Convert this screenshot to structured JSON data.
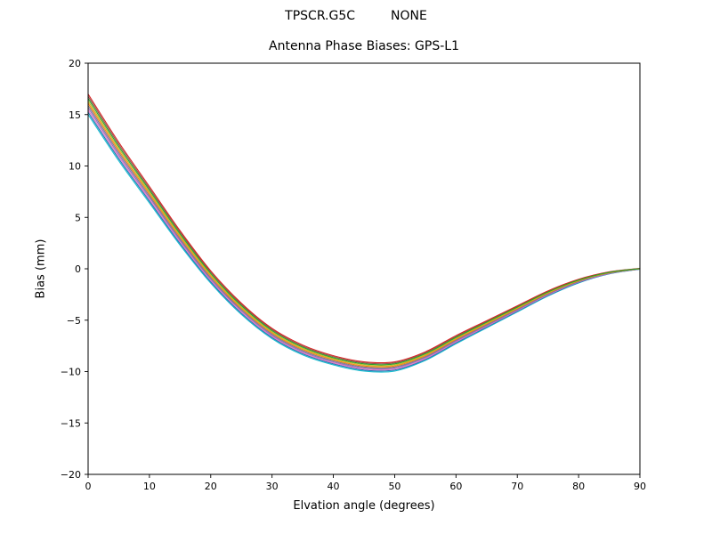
{
  "chart_data": {
    "type": "line",
    "suptitle_left": "TPSCR.G5C",
    "suptitle_right": "NONE",
    "title": "Antenna Phase Biases: GPS-L1",
    "xlabel": "Elvation angle (degrees)",
    "ylabel": "Bias (mm)",
    "xlim": [
      0,
      90
    ],
    "ylim": [
      -20,
      20
    ],
    "grid": false,
    "legend": false,
    "frame_color": "#000000",
    "background": "#ffffff",
    "line_width": 1.1,
    "xticks": {
      "values": [
        0,
        10,
        20,
        30,
        40,
        50,
        60,
        70,
        80,
        90
      ],
      "labels": [
        "0",
        "10",
        "20",
        "30",
        "40",
        "50",
        "60",
        "70",
        "80",
        "90"
      ]
    },
    "yticks": {
      "values": [
        -20,
        -15,
        -10,
        -5,
        0,
        5,
        10,
        15,
        20
      ],
      "labels": [
        "−20",
        "−15",
        "−10",
        "−5",
        "0",
        "5",
        "10",
        "15",
        "20"
      ]
    },
    "x": [
      0,
      5,
      10,
      15,
      20,
      25,
      30,
      35,
      40,
      45,
      50,
      55,
      60,
      65,
      70,
      75,
      80,
      85,
      90
    ],
    "series": [
      {
        "name": "line-01",
        "color": "#17becf",
        "values": [
          15.0,
          10.5,
          6.4,
          2.3,
          -1.4,
          -4.45,
          -6.8,
          -8.38,
          -9.35,
          -9.95,
          -9.95,
          -8.92,
          -7.3,
          -5.75,
          -4.2,
          -2.65,
          -1.38,
          -0.5,
          -0.04
        ]
      },
      {
        "name": "line-02",
        "color": "#1f77b4",
        "values": [
          15.22,
          10.7,
          6.58,
          2.45,
          -1.27,
          -4.33,
          -6.69,
          -8.27,
          -9.25,
          -9.85,
          -9.85,
          -8.83,
          -7.21,
          -5.67,
          -4.13,
          -2.6,
          -1.34,
          -0.48,
          -0.03
        ]
      },
      {
        "name": "line-03",
        "color": "#e377c2",
        "values": [
          15.44,
          10.9,
          6.75,
          2.61,
          -1.14,
          -4.21,
          -6.58,
          -8.17,
          -9.15,
          -9.75,
          -9.75,
          -8.74,
          -7.12,
          -5.6,
          -4.07,
          -2.54,
          -1.3,
          -0.46,
          -0.02
        ]
      },
      {
        "name": "line-04",
        "color": "#9467bd",
        "values": [
          15.67,
          11.1,
          6.94,
          2.77,
          -1.0,
          -4.08,
          -6.47,
          -8.06,
          -9.05,
          -9.65,
          -9.65,
          -8.64,
          -7.03,
          -5.52,
          -4.0,
          -2.48,
          -1.26,
          -0.43,
          -0.01
        ]
      },
      {
        "name": "line-05",
        "color": "#7f7f7f",
        "values": [
          15.89,
          11.3,
          7.11,
          2.92,
          -0.87,
          -3.96,
          -6.36,
          -7.95,
          -8.95,
          -9.55,
          -9.55,
          -8.55,
          -6.94,
          -5.44,
          -3.93,
          -2.43,
          -1.22,
          -0.41,
          0.0
        ]
      },
      {
        "name": "line-06",
        "color": "#ff7f0e",
        "values": [
          16.11,
          11.5,
          7.29,
          3.08,
          -0.73,
          -3.84,
          -6.25,
          -7.85,
          -8.85,
          -9.45,
          -9.45,
          -8.45,
          -6.86,
          -5.36,
          -3.87,
          -2.37,
          -1.18,
          -0.39,
          0.0
        ]
      },
      {
        "name": "line-07",
        "color": "#bcbd22",
        "values": [
          16.33,
          11.7,
          7.46,
          3.23,
          -0.6,
          -3.72,
          -6.14,
          -7.74,
          -8.75,
          -9.35,
          -9.35,
          -8.36,
          -6.77,
          -5.28,
          -3.8,
          -2.32,
          -1.14,
          -0.37,
          0.01
        ]
      },
      {
        "name": "line-08",
        "color": "#8c564b",
        "values": [
          16.78,
          12.1,
          7.82,
          3.55,
          -0.33,
          -3.47,
          -5.91,
          -7.53,
          -8.55,
          -9.15,
          -9.15,
          -8.17,
          -6.59,
          -5.13,
          -3.67,
          -2.21,
          -1.06,
          -0.32,
          0.03
        ]
      },
      {
        "name": "line-09",
        "color": "#d62728",
        "values": [
          17.0,
          12.3,
          8.0,
          3.7,
          -0.2,
          -3.35,
          -5.8,
          -7.42,
          -8.45,
          -9.05,
          -9.05,
          -8.08,
          -6.5,
          -5.05,
          -3.6,
          -2.15,
          -1.02,
          -0.3,
          0.04
        ]
      },
      {
        "name": "line-10",
        "color": "#2ca02c",
        "values": [
          16.56,
          11.9,
          7.65,
          3.39,
          -0.46,
          -3.59,
          -6.02,
          -7.63,
          -8.65,
          -9.25,
          -9.25,
          -8.26,
          -6.68,
          -5.2,
          -3.73,
          -2.26,
          -1.1,
          -0.34,
          0.02
        ]
      }
    ]
  }
}
